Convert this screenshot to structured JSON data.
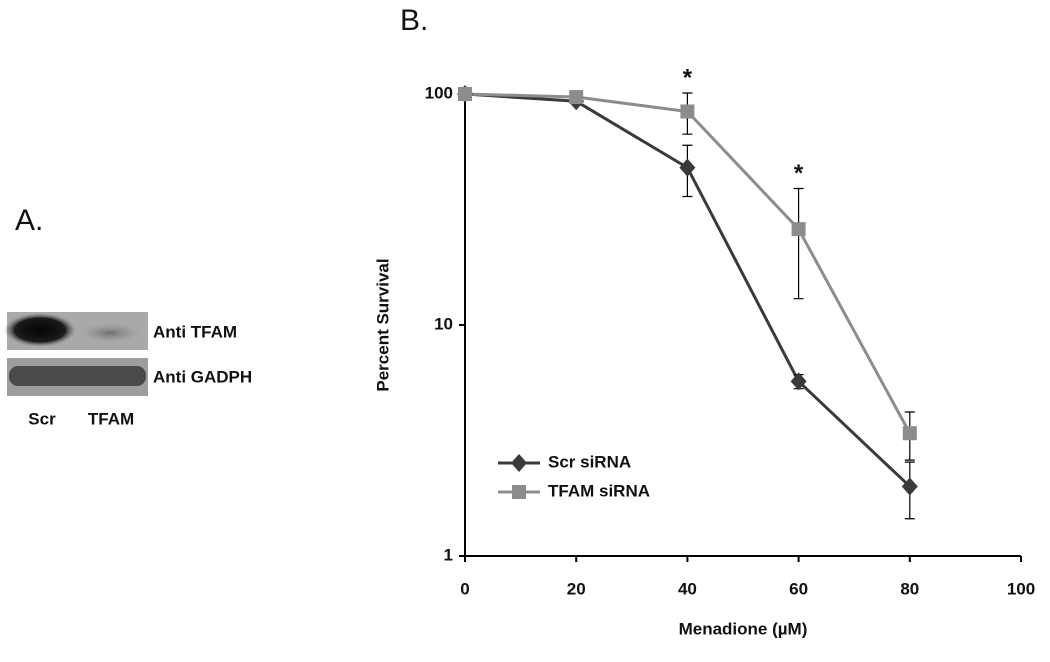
{
  "panel_a": {
    "label": "A.",
    "bands": [
      "Anti TFAM",
      "Anti GADPH"
    ],
    "lanes": [
      "Scr",
      "TFAM"
    ]
  },
  "chart_data": {
    "type": "line",
    "panel_label": "B.",
    "x_label": "Menadione (µM)",
    "y_label": "Percent Survival",
    "x": [
      0,
      20,
      40,
      60,
      80
    ],
    "series": [
      {
        "name": "Scr siRNA",
        "color": "#3a3a3a",
        "marker": "diamond",
        "values": [
          100,
          93,
          48,
          5.7,
          2.0
        ],
        "errors": [
          null,
          null,
          12,
          0.4,
          0.55
        ]
      },
      {
        "name": "TFAM siRNA",
        "color": "#8c8c8c",
        "marker": "square",
        "values": [
          100,
          97,
          84,
          26,
          3.4
        ],
        "errors": [
          null,
          null,
          17,
          13,
          0.8
        ]
      }
    ],
    "annotations": [
      {
        "text": "*",
        "x": 40
      },
      {
        "text": "*",
        "x": 60
      }
    ],
    "xlim": [
      0,
      100
    ],
    "xticks": [
      0,
      20,
      40,
      60,
      80,
      100
    ],
    "ylim": [
      1,
      100
    ],
    "yticks": [
      1,
      10,
      100
    ],
    "yscale": "log",
    "legend": "lower left"
  }
}
